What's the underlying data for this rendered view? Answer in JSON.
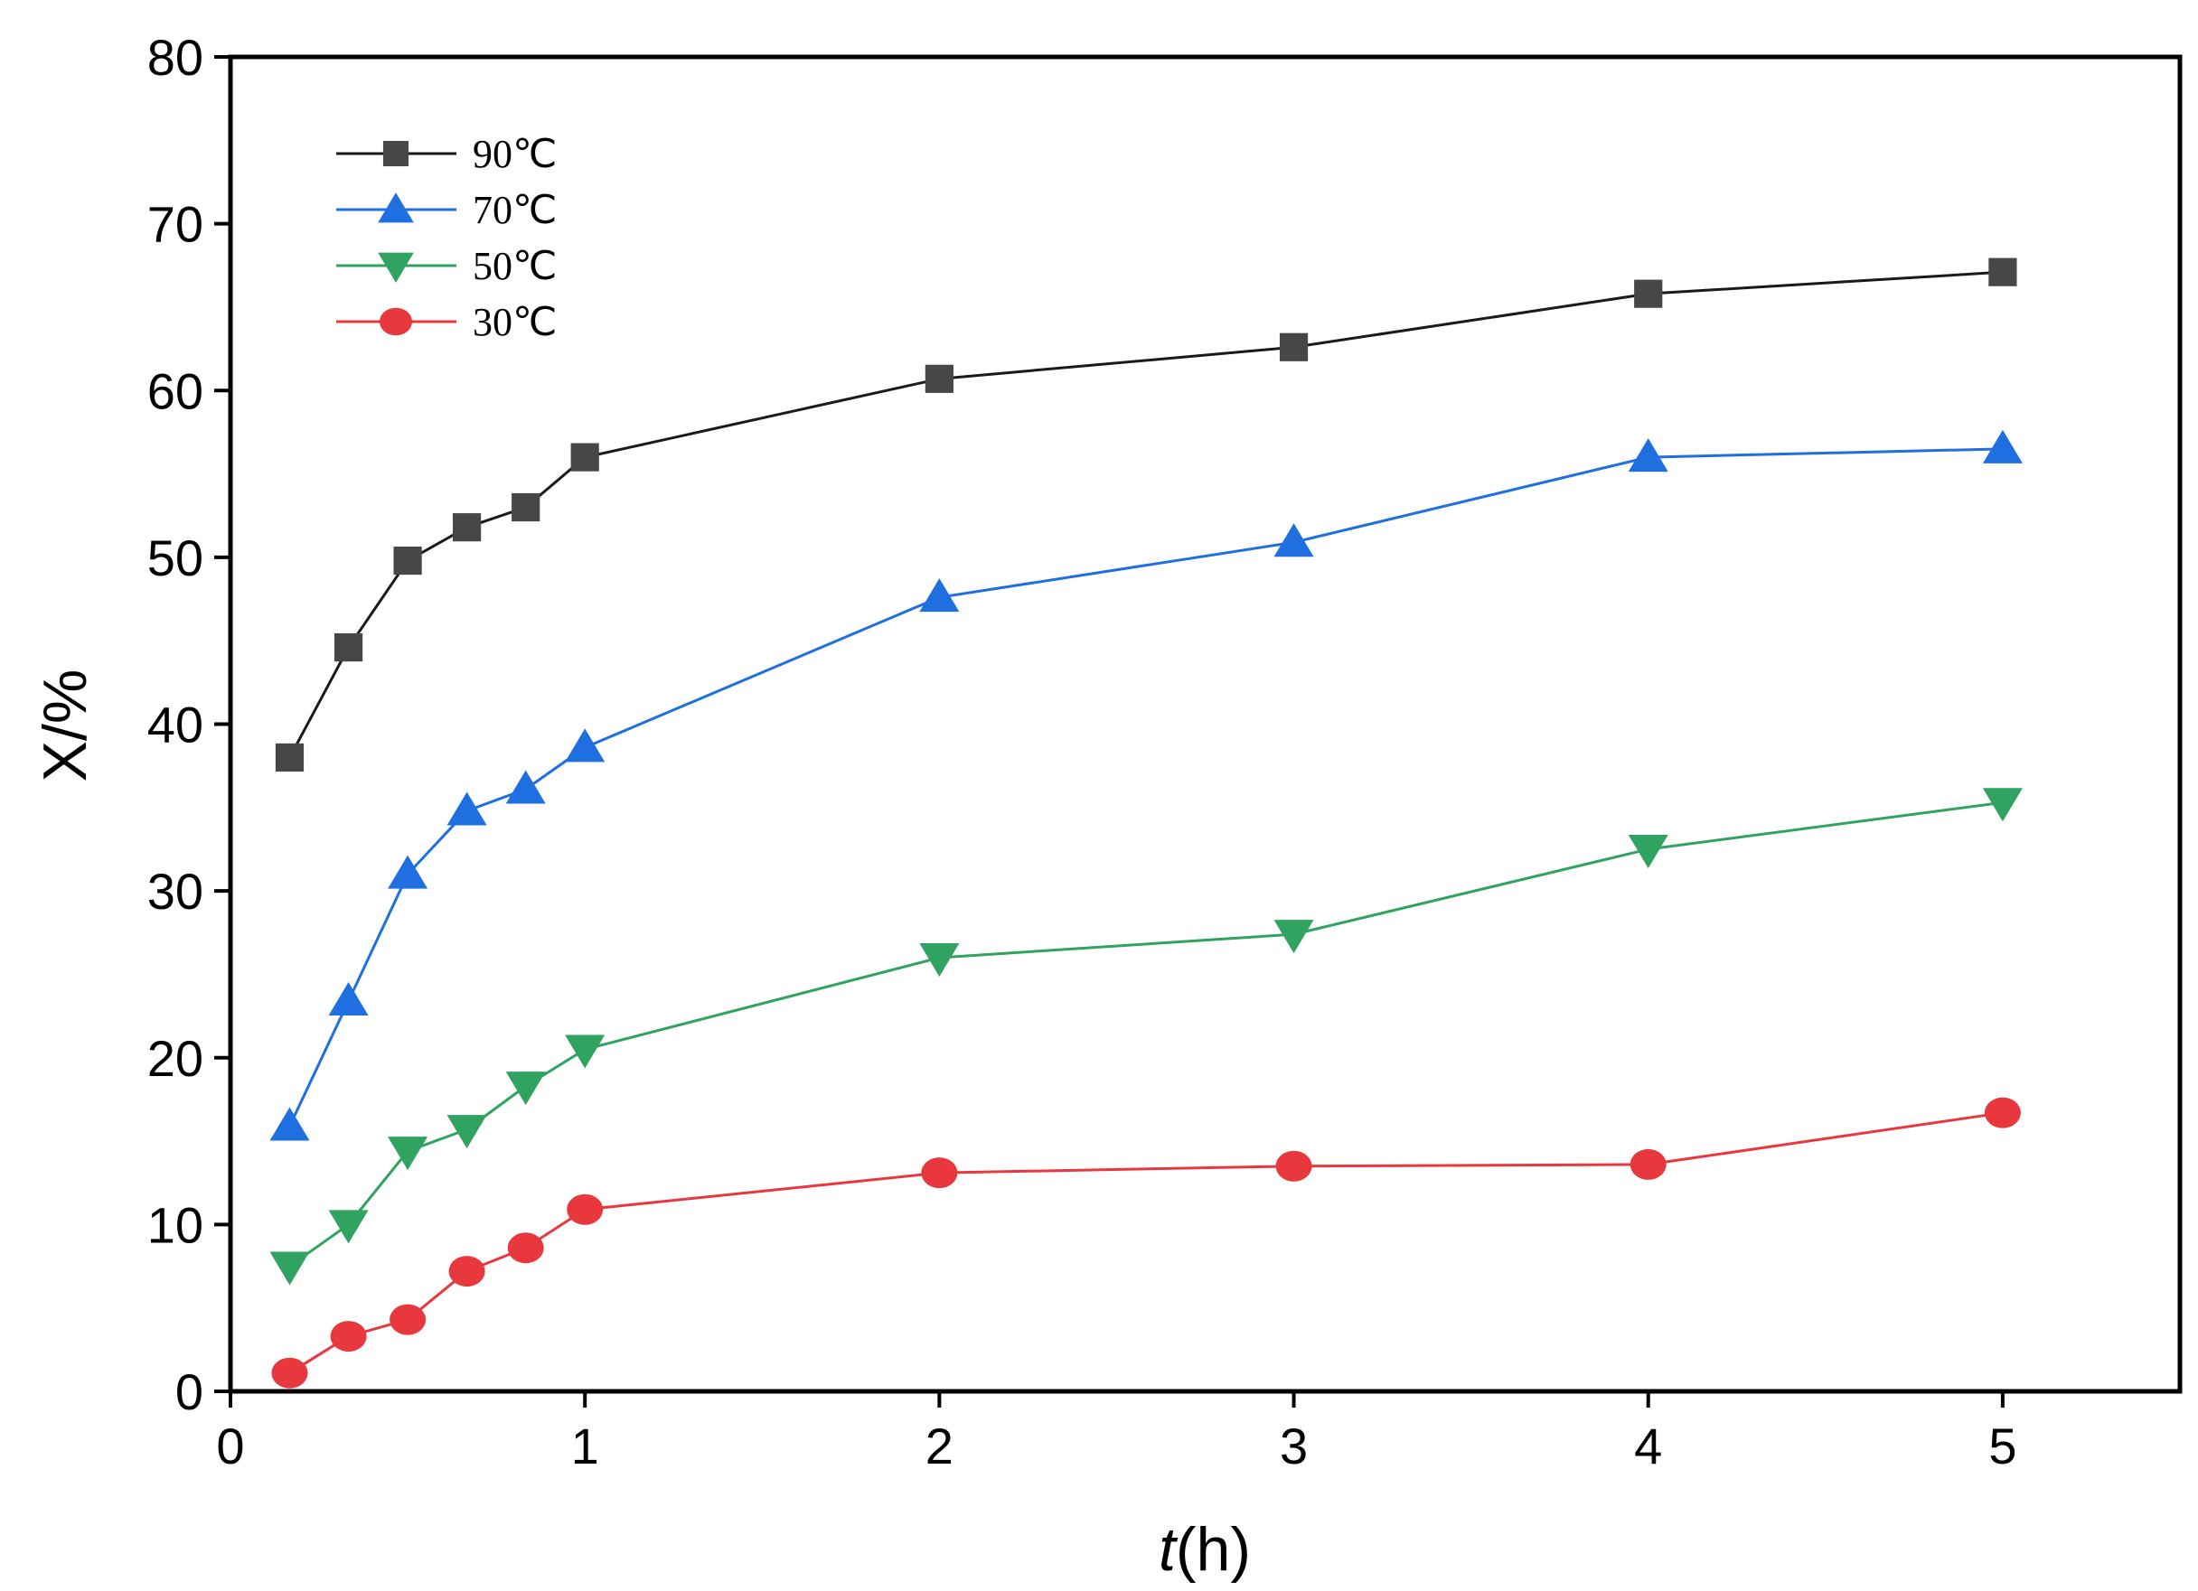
{
  "chart_data": {
    "type": "line",
    "title": "",
    "xlabel": {
      "italic": "t",
      "rest": "(h)"
    },
    "ylabel": "X/%",
    "xlim": [
      0,
      5.5
    ],
    "ylim": [
      0,
      80
    ],
    "xticks": [
      0,
      1,
      2,
      3,
      4,
      5
    ],
    "yticks": [
      0,
      10,
      20,
      30,
      40,
      50,
      60,
      70,
      80
    ],
    "grid": false,
    "legend_position": "top-left",
    "x": [
      0.167,
      0.333,
      0.5,
      0.667,
      0.833,
      1,
      2,
      3,
      4,
      5
    ],
    "series": [
      {
        "name": "90℃",
        "marker": "square",
        "color": "#474747",
        "line_color": "#1a1a1a",
        "values": [
          38.0,
          44.6,
          49.8,
          51.8,
          53.0,
          56.0,
          60.7,
          62.6,
          65.8,
          67.1
        ]
      },
      {
        "name": "70℃",
        "marker": "triangle-up",
        "color": "#1f6fe0",
        "line_color": "#1f6fe0",
        "values": [
          15.9,
          23.4,
          31.0,
          34.8,
          36.1,
          38.6,
          47.6,
          50.9,
          56.0,
          56.5
        ]
      },
      {
        "name": "50℃",
        "marker": "triangle-down",
        "color": "#2fa35f",
        "line_color": "#2fa35f",
        "values": [
          7.5,
          10.0,
          14.4,
          15.7,
          18.3,
          20.5,
          26.0,
          27.4,
          32.5,
          35.3
        ]
      },
      {
        "name": "30℃",
        "marker": "circle",
        "color": "#e8383d",
        "line_color": "#e8383d",
        "values": [
          1.1,
          3.3,
          4.3,
          7.2,
          8.6,
          10.9,
          13.1,
          13.5,
          13.6,
          16.7
        ]
      }
    ]
  }
}
